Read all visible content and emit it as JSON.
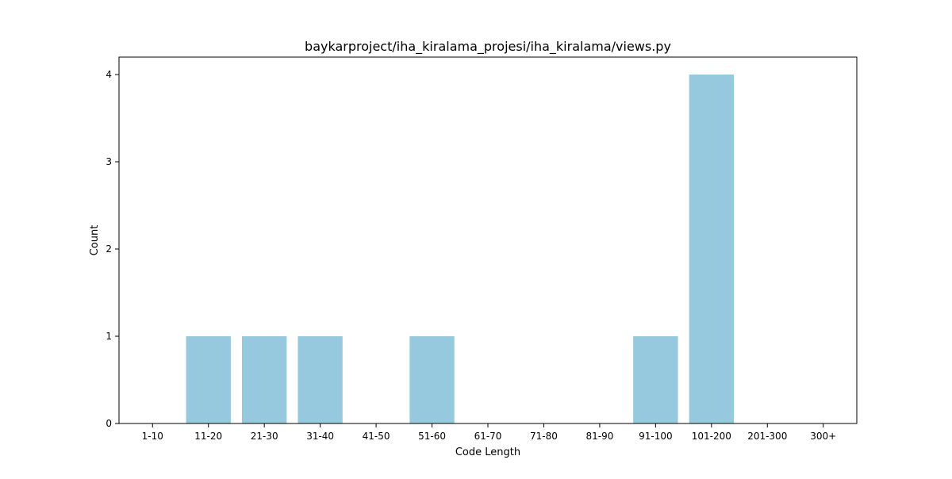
{
  "chart_data": {
    "type": "bar",
    "title": "baykarproject/iha_kiralama_projesi/iha_kiralama/views.py",
    "xlabel": "Code Length",
    "ylabel": "Count",
    "categories": [
      "1-10",
      "11-20",
      "21-30",
      "31-40",
      "41-50",
      "51-60",
      "61-70",
      "71-80",
      "81-90",
      "91-100",
      "101-200",
      "201-300",
      "300+"
    ],
    "values": [
      0,
      1,
      1,
      1,
      0,
      1,
      0,
      0,
      0,
      1,
      4,
      0,
      0
    ],
    "ylim": [
      0,
      4.2
    ],
    "yticks": [
      "0",
      "1",
      "2",
      "3",
      "4"
    ],
    "grid": false,
    "bar_color": "#96c9dd"
  }
}
